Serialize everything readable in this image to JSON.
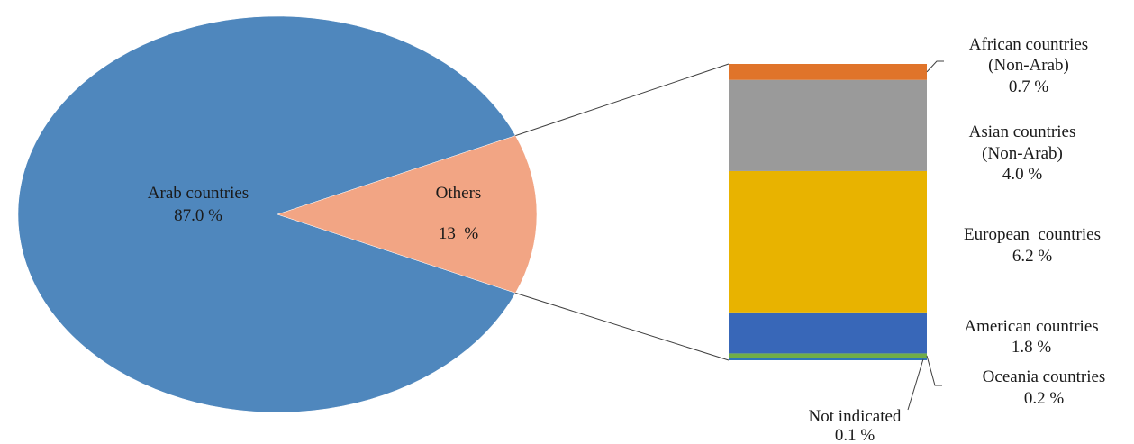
{
  "chart_data": {
    "type": "pie",
    "pie": {
      "slices": [
        {
          "name": "Arab countries",
          "value": 87.0,
          "value_label": "87.0 %",
          "color": "#4f87bd"
        },
        {
          "name": "Others",
          "value": 13,
          "value_label": "13  %",
          "color": "#f2a584"
        }
      ]
    },
    "breakdown": {
      "type": "stacked_bar",
      "parent": "Others",
      "segments": [
        {
          "name_lines": [
            "Not indicated"
          ],
          "value": 0.1,
          "value_label": "0.1 %",
          "color": "#2e75b6"
        },
        {
          "name_lines": [
            "Oceania countries"
          ],
          "value": 0.2,
          "value_label": "0.2 %",
          "color": "#70ad47"
        },
        {
          "name_lines": [
            "American countries"
          ],
          "value": 1.8,
          "value_label": "1.8 %",
          "color": "#3867b8"
        },
        {
          "name_lines": [
            "European  countries"
          ],
          "value": 6.2,
          "value_label": "6.2 %",
          "color": "#e8b300"
        },
        {
          "name_lines": [
            "Asian countries",
            "(Non-Arab)"
          ],
          "value": 4.0,
          "value_label": "4.0 %",
          "color": "#9a9a9a"
        },
        {
          "name_lines": [
            "African countries",
            "(Non-Arab)"
          ],
          "value": 0.7,
          "value_label": "0.7 %",
          "color": "#e0742a"
        }
      ]
    }
  }
}
